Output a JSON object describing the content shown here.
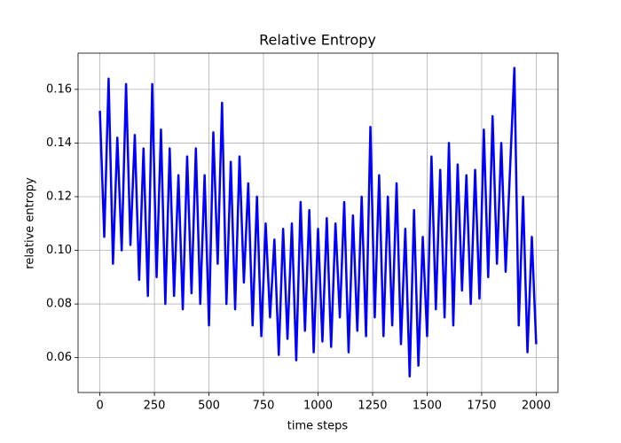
{
  "chart_data": {
    "type": "line",
    "title": "Relative Entropy",
    "x_label": "time steps",
    "y_label": "relative entropy",
    "x": [
      0,
      20,
      40,
      60,
      80,
      100,
      120,
      140,
      160,
      180,
      200,
      220,
      240,
      260,
      280,
      300,
      320,
      340,
      360,
      380,
      400,
      420,
      440,
      460,
      480,
      500,
      520,
      540,
      560,
      580,
      600,
      620,
      640,
      660,
      680,
      700,
      720,
      740,
      760,
      780,
      800,
      820,
      840,
      860,
      880,
      900,
      920,
      940,
      960,
      980,
      1000,
      1020,
      1040,
      1060,
      1080,
      1100,
      1120,
      1140,
      1160,
      1180,
      1200,
      1220,
      1240,
      1260,
      1280,
      1300,
      1320,
      1340,
      1360,
      1380,
      1400,
      1420,
      1440,
      1460,
      1480,
      1500,
      1520,
      1540,
      1560,
      1580,
      1600,
      1620,
      1640,
      1660,
      1680,
      1700,
      1720,
      1740,
      1760,
      1780,
      1800,
      1820,
      1840,
      1860,
      1880,
      1900,
      1920,
      1940,
      1960,
      1980,
      2000
    ],
    "values": [
      0.152,
      0.105,
      0.164,
      0.095,
      0.142,
      0.1,
      0.162,
      0.102,
      0.143,
      0.089,
      0.138,
      0.083,
      0.162,
      0.09,
      0.145,
      0.08,
      0.138,
      0.083,
      0.128,
      0.078,
      0.135,
      0.084,
      0.138,
      0.08,
      0.128,
      0.072,
      0.144,
      0.095,
      0.155,
      0.08,
      0.133,
      0.078,
      0.135,
      0.088,
      0.125,
      0.072,
      0.12,
      0.068,
      0.11,
      0.075,
      0.104,
      0.061,
      0.108,
      0.067,
      0.11,
      0.059,
      0.118,
      0.07,
      0.115,
      0.062,
      0.108,
      0.066,
      0.112,
      0.064,
      0.11,
      0.075,
      0.118,
      0.062,
      0.113,
      0.07,
      0.12,
      0.068,
      0.146,
      0.075,
      0.128,
      0.068,
      0.12,
      0.072,
      0.125,
      0.065,
      0.108,
      0.053,
      0.115,
      0.057,
      0.105,
      0.068,
      0.135,
      0.078,
      0.13,
      0.075,
      0.14,
      0.072,
      0.132,
      0.085,
      0.128,
      0.08,
      0.13,
      0.082,
      0.145,
      0.09,
      0.15,
      0.095,
      0.14,
      0.092,
      0.13,
      0.168,
      0.072,
      0.12,
      0.062,
      0.105,
      0.065
    ],
    "color": "#0000ff",
    "xlim": [
      -100,
      2100
    ],
    "xticks": [
      0,
      250,
      500,
      750,
      1000,
      1250,
      1500,
      1750,
      2000
    ],
    "ylim": [
      0.047,
      0.1735
    ],
    "yticks": [
      0.06,
      0.08,
      {
        "value": 0.1,
        "label": "0.10"
      },
      0.12,
      0.14,
      0.16
    ],
    "grid": true
  }
}
